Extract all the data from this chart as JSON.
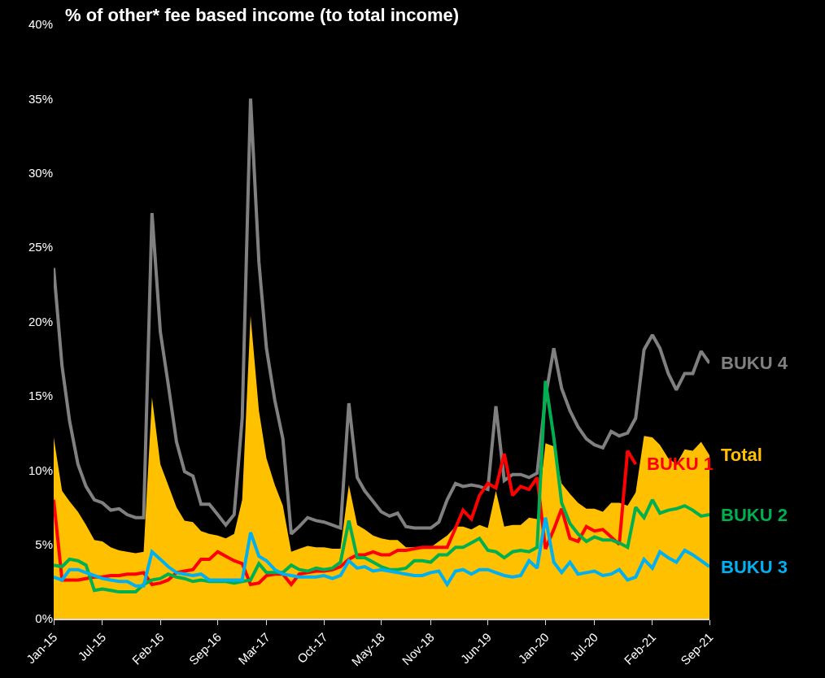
{
  "chart_data": {
    "type": "line",
    "title": "% of other* fee based income (to total income)",
    "x": [
      "2015-01",
      "2015-02",
      "2015-03",
      "2015-04",
      "2015-05",
      "2015-06",
      "2015-07",
      "2015-08",
      "2015-09",
      "2015-10",
      "2015-11",
      "2015-12",
      "2016-01",
      "2016-02",
      "2016-03",
      "2016-04",
      "2016-05",
      "2016-06",
      "2016-07",
      "2016-08",
      "2016-09",
      "2016-10",
      "2016-11",
      "2016-12",
      "2017-01",
      "2017-02",
      "2017-03",
      "2017-04",
      "2017-05",
      "2017-06",
      "2017-07",
      "2017-08",
      "2017-09",
      "2017-10",
      "2017-11",
      "2017-12",
      "2018-01",
      "2018-02",
      "2018-03",
      "2018-04",
      "2018-05",
      "2018-06",
      "2018-07",
      "2018-08",
      "2018-09",
      "2018-10",
      "2018-11",
      "2018-12",
      "2019-01",
      "2019-02",
      "2019-03",
      "2019-04",
      "2019-05",
      "2019-06",
      "2019-07",
      "2019-08",
      "2019-09",
      "2019-10",
      "2019-11",
      "2019-12",
      "2020-01",
      "2020-02",
      "2020-03",
      "2020-04",
      "2020-05",
      "2020-06",
      "2020-07",
      "2020-08",
      "2020-09",
      "2020-10",
      "2020-11",
      "2020-12",
      "2021-01",
      "2021-02",
      "2021-03",
      "2021-04",
      "2021-05",
      "2021-06",
      "2021-07",
      "2021-08",
      "2021-09"
    ],
    "series": [
      {
        "name": "Total",
        "type": "area",
        "color": "#ffc000",
        "values": [
          12.2,
          8.6,
          7.9,
          7.2,
          6.3,
          5.3,
          5.2,
          4.8,
          4.6,
          4.5,
          4.4,
          4.5,
          14.9,
          10.4,
          9.0,
          7.5,
          6.6,
          6.5,
          5.9,
          5.7,
          5.6,
          5.4,
          5.7,
          8.0,
          20.4,
          14.0,
          10.8,
          9.0,
          7.6,
          4.5,
          4.7,
          4.9,
          4.8,
          4.8,
          4.7,
          4.7,
          9.0,
          6.3,
          6.0,
          5.6,
          5.4,
          5.3,
          5.3,
          4.8,
          4.8,
          4.8,
          4.8,
          5.2,
          5.6,
          6.2,
          6.2,
          6.0,
          6.3,
          6.1,
          8.6,
          6.2,
          6.3,
          6.3,
          6.8,
          6.7,
          11.8,
          11.6,
          9.1,
          8.4,
          7.8,
          7.4,
          7.4,
          7.2,
          7.8,
          7.8,
          7.6,
          8.5,
          12.3,
          12.2,
          11.7,
          10.8,
          10.4,
          11.4,
          11.3,
          11.9,
          11.0
        ]
      },
      {
        "name": "BUKU 4",
        "color": "#808080",
        "values": [
          23.6,
          17.0,
          13.3,
          10.4,
          8.9,
          8.0,
          7.8,
          7.3,
          7.4,
          7.0,
          6.8,
          6.8,
          27.3,
          19.3,
          15.8,
          11.9,
          9.9,
          9.6,
          7.7,
          7.7,
          7.0,
          6.3,
          7.0,
          13.5,
          35.0,
          24.0,
          18.2,
          14.7,
          12.1,
          5.7,
          6.2,
          6.8,
          6.6,
          6.5,
          6.3,
          6.1,
          14.5,
          9.5,
          8.6,
          7.9,
          7.2,
          6.9,
          7.1,
          6.2,
          6.1,
          6.1,
          6.1,
          6.5,
          8.0,
          9.1,
          8.9,
          9.0,
          8.9,
          8.7,
          14.3,
          9.3,
          9.7,
          9.7,
          9.5,
          9.8,
          14.9,
          18.2,
          15.5,
          14.0,
          12.9,
          12.1,
          11.7,
          11.5,
          12.6,
          12.3,
          12.5,
          13.5,
          18.1,
          19.1,
          18.2,
          16.5,
          15.4,
          16.5,
          16.5,
          18.0,
          17.2
        ]
      },
      {
        "name": "BUKU 1",
        "color": "#ff0000",
        "values": [
          8.0,
          2.6,
          2.6,
          2.6,
          2.7,
          2.8,
          2.8,
          2.9,
          2.9,
          3.0,
          3.0,
          3.1,
          2.3,
          2.4,
          2.6,
          3.1,
          3.2,
          3.3,
          4.0,
          4.0,
          4.5,
          4.2,
          3.9,
          3.7,
          2.3,
          2.4,
          2.9,
          3.0,
          3.0,
          2.3,
          3.0,
          3.1,
          3.2,
          3.2,
          3.3,
          3.5,
          4.0,
          4.3,
          4.3,
          4.5,
          4.3,
          4.3,
          4.6,
          4.6,
          4.7,
          4.8,
          4.8,
          4.8,
          4.8,
          6.1,
          7.3,
          6.7,
          8.3,
          9.1,
          8.8,
          11.1,
          8.3,
          8.9,
          8.7,
          9.5,
          4.7,
          6.0,
          7.4,
          5.4,
          5.2,
          6.2,
          5.9,
          6.0,
          5.5,
          5.0,
          11.3,
          10.4,
          null,
          null,
          null,
          null,
          null,
          null,
          null,
          null,
          null
        ]
      },
      {
        "name": "BUKU 2",
        "color": "#00b050",
        "values": [
          3.6,
          3.5,
          4.0,
          3.9,
          3.6,
          1.9,
          2.0,
          1.9,
          1.8,
          1.8,
          1.8,
          2.3,
          2.6,
          2.7,
          3.0,
          2.8,
          2.7,
          2.5,
          2.6,
          2.5,
          2.5,
          2.5,
          2.4,
          2.5,
          2.6,
          3.7,
          3.1,
          3.1,
          3.1,
          3.6,
          3.3,
          3.2,
          3.4,
          3.3,
          3.4,
          3.8,
          6.6,
          4.1,
          4.1,
          3.8,
          3.5,
          3.3,
          3.3,
          3.4,
          3.9,
          3.9,
          3.8,
          4.3,
          4.3,
          4.8,
          4.8,
          5.1,
          5.4,
          4.6,
          4.5,
          4.1,
          4.5,
          4.6,
          4.5,
          4.8,
          16.0,
          12.2,
          7.8,
          6.4,
          5.7,
          5.2,
          5.5,
          5.3,
          5.3,
          5.1,
          4.8,
          7.5,
          6.8,
          8.0,
          7.1,
          7.3,
          7.4,
          7.6,
          7.3,
          6.9,
          7.0
        ]
      },
      {
        "name": "BUKU 3",
        "color": "#00b0f0",
        "values": [
          2.8,
          2.6,
          3.3,
          3.3,
          3.1,
          2.9,
          2.7,
          2.6,
          2.5,
          2.5,
          2.2,
          2.2,
          4.5,
          4.0,
          3.5,
          3.1,
          3.0,
          2.9,
          3.0,
          2.6,
          2.6,
          2.6,
          2.6,
          2.6,
          5.8,
          4.2,
          3.9,
          3.3,
          3.0,
          2.9,
          2.8,
          2.8,
          2.8,
          2.9,
          2.7,
          2.9,
          3.9,
          3.4,
          3.5,
          3.2,
          3.3,
          3.2,
          3.1,
          3.0,
          2.9,
          2.9,
          3.1,
          3.2,
          2.3,
          3.2,
          3.3,
          3.0,
          3.3,
          3.3,
          3.1,
          2.9,
          2.8,
          2.9,
          3.9,
          3.4,
          6.8,
          3.8,
          3.1,
          3.8,
          3.0,
          3.1,
          3.2,
          2.9,
          3.0,
          3.3,
          2.6,
          2.8,
          4.0,
          3.4,
          4.5,
          4.1,
          3.8,
          4.6,
          4.3,
          3.9,
          3.5
        ]
      }
    ],
    "xlim": [
      "2015-01",
      "2021-09"
    ],
    "xticks": [
      {
        "value": "2015-01",
        "label": "Jan-15"
      },
      {
        "value": "2015-07",
        "label": "Jul-15"
      },
      {
        "value": "2016-02",
        "label": "Feb-16"
      },
      {
        "value": "2016-09",
        "label": "Sep-16"
      },
      {
        "value": "2017-03",
        "label": "Mar-17"
      },
      {
        "value": "2017-10",
        "label": "Oct-17"
      },
      {
        "value": "2018-05",
        "label": "May-18"
      },
      {
        "value": "2018-11",
        "label": "Nov-18"
      },
      {
        "value": "2019-06",
        "label": "Jun-19"
      },
      {
        "value": "2020-01",
        "label": "Jan-20"
      },
      {
        "value": "2020-07",
        "label": "Jul-20"
      },
      {
        "value": "2021-02",
        "label": "Feb-21"
      },
      {
        "value": "2021-09",
        "label": "Sep-21"
      }
    ],
    "ylim": [
      0,
      40
    ],
    "yticks": [
      {
        "value": 0,
        "label": "0%"
      },
      {
        "value": 5,
        "label": "5%"
      },
      {
        "value": 10,
        "label": "10%"
      },
      {
        "value": 15,
        "label": "15%"
      },
      {
        "value": 20,
        "label": "20%"
      },
      {
        "value": 25,
        "label": "25%"
      },
      {
        "value": 30,
        "label": "30%"
      },
      {
        "value": 35,
        "label": "35%"
      },
      {
        "value": 40,
        "label": "40%"
      }
    ],
    "grid": false,
    "legend": false,
    "marker": "none",
    "line_style": "solid"
  }
}
